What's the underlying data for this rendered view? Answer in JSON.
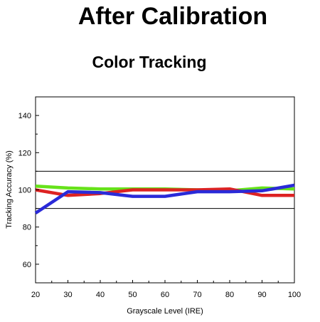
{
  "header": {
    "title": "After Calibration",
    "subtitle": "Color Tracking"
  },
  "chart_data": {
    "type": "line",
    "title": "Color Tracking",
    "xlabel": "Grayscale Level (IRE)",
    "ylabel": "Tracking Accuracy (%)",
    "x": [
      20,
      30,
      40,
      50,
      60,
      70,
      80,
      90,
      100
    ],
    "xlim": [
      20,
      100
    ],
    "ylim": [
      50,
      150
    ],
    "xticks": [
      20,
      30,
      40,
      50,
      60,
      70,
      80,
      90,
      100
    ],
    "yticks": [
      60,
      80,
      100,
      120,
      140
    ],
    "reference_lines": [
      110,
      90
    ],
    "grid": false,
    "series": [
      {
        "color": "#66e21a",
        "values": [
          102,
          101,
          100.5,
          100.5,
          100.5,
          100,
          99.5,
          101,
          100.5
        ]
      },
      {
        "color": "#dd2222",
        "values": [
          100,
          97,
          98,
          100,
          100,
          100,
          100.5,
          97,
          97
        ]
      },
      {
        "color": "#2a2ad8",
        "values": [
          87.5,
          99,
          98.5,
          96.5,
          96.5,
          99,
          99,
          99.5,
          102.5
        ]
      }
    ]
  }
}
